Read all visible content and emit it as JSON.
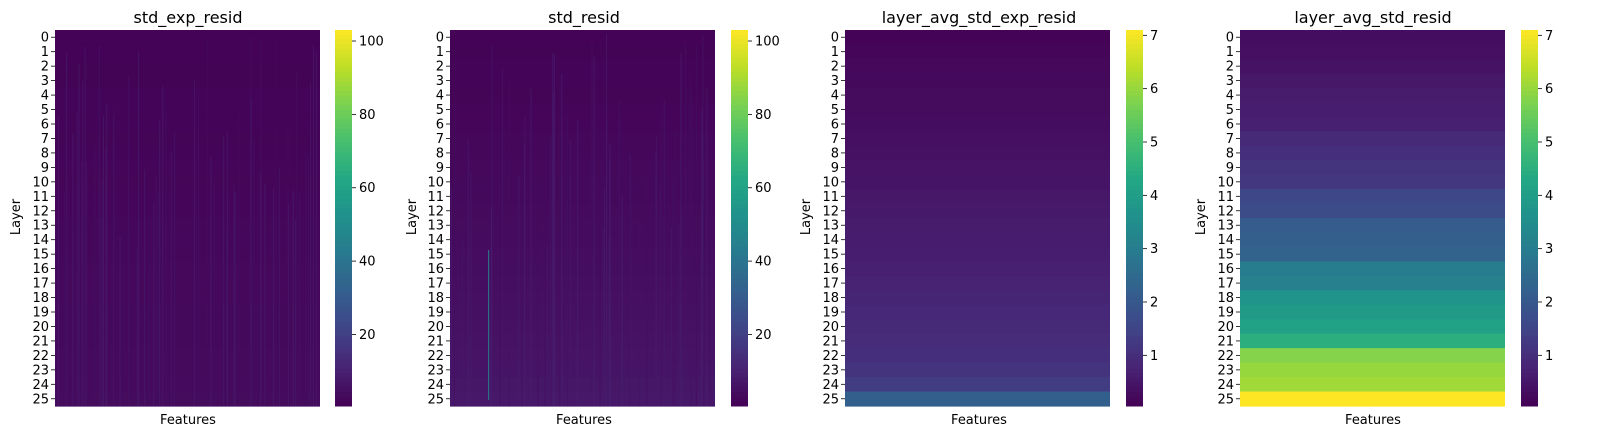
{
  "chart_data": [
    {
      "type": "heatmap",
      "title": "std_exp_resid",
      "xlabel": "Features",
      "ylabel": "Layer",
      "rows": [
        "0",
        "1",
        "2",
        "3",
        "4",
        "5",
        "6",
        "7",
        "8",
        "9",
        "10",
        "11",
        "12",
        "13",
        "14",
        "15",
        "16",
        "17",
        "18",
        "19",
        "20",
        "21",
        "22",
        "23",
        "24",
        "25"
      ],
      "colorbar": {
        "min": 0.5,
        "max": 103,
        "ticks": [
          20,
          40,
          60,
          80,
          100
        ]
      },
      "row_values": [
        1.2,
        1.2,
        1.3,
        1.3,
        1.4,
        1.4,
        1.5,
        1.6,
        1.7,
        1.8,
        1.9,
        2.0,
        2.1,
        2.2,
        2.3,
        2.4,
        2.5,
        2.6,
        2.7,
        2.8,
        2.9,
        3.0,
        3.1,
        3.2,
        3.3,
        3.5
      ],
      "colormap": "viridis"
    },
    {
      "type": "heatmap",
      "title": "std_resid",
      "xlabel": "Features",
      "ylabel": "Layer",
      "rows": [
        "0",
        "1",
        "2",
        "3",
        "4",
        "5",
        "6",
        "7",
        "8",
        "9",
        "10",
        "11",
        "12",
        "13",
        "14",
        "15",
        "16",
        "17",
        "18",
        "19",
        "20",
        "21",
        "22",
        "23",
        "24",
        "25"
      ],
      "colorbar": {
        "min": 0.5,
        "max": 103,
        "ticks": [
          20,
          40,
          60,
          80,
          100
        ]
      },
      "row_values": [
        1.2,
        1.3,
        1.4,
        1.5,
        1.6,
        1.8,
        2.0,
        2.2,
        2.4,
        2.6,
        2.8,
        3.0,
        3.2,
        3.4,
        3.6,
        3.9,
        4.2,
        4.5,
        4.8,
        5.1,
        5.4,
        5.7,
        6.0,
        6.3,
        6.7,
        7.1
      ],
      "colormap": "viridis"
    },
    {
      "type": "heatmap",
      "title": "layer_avg_std_exp_resid",
      "xlabel": "Features",
      "ylabel": "Layer",
      "rows": [
        "0",
        "1",
        "2",
        "3",
        "4",
        "5",
        "6",
        "7",
        "8",
        "9",
        "10",
        "11",
        "12",
        "13",
        "14",
        "15",
        "16",
        "17",
        "18",
        "19",
        "20",
        "21",
        "22",
        "23",
        "24",
        "25"
      ],
      "colorbar": {
        "min": 0.05,
        "max": 7.1,
        "ticks": [
          1,
          2,
          3,
          4,
          5,
          6,
          7
        ]
      },
      "row_values": [
        0.1,
        0.15,
        0.2,
        0.22,
        0.25,
        0.28,
        0.3,
        0.35,
        0.38,
        0.42,
        0.45,
        0.5,
        0.55,
        0.6,
        0.62,
        0.65,
        0.7,
        0.75,
        0.8,
        0.85,
        0.9,
        0.95,
        1.0,
        1.1,
        1.3,
        2.2
      ],
      "colormap": "viridis"
    },
    {
      "type": "heatmap",
      "title": "layer_avg_std_resid",
      "xlabel": "Features",
      "ylabel": "Layer",
      "rows": [
        "0",
        "1",
        "2",
        "3",
        "4",
        "5",
        "6",
        "7",
        "8",
        "9",
        "10",
        "11",
        "12",
        "13",
        "14",
        "15",
        "16",
        "17",
        "18",
        "19",
        "20",
        "21",
        "22",
        "23",
        "24",
        "25"
      ],
      "colorbar": {
        "min": 0.05,
        "max": 7.1,
        "ticks": [
          1,
          2,
          3,
          4,
          5,
          6,
          7
        ]
      },
      "row_values": [
        0.3,
        0.35,
        0.4,
        0.5,
        0.6,
        0.65,
        0.7,
        0.9,
        1.0,
        1.1,
        1.2,
        1.6,
        1.7,
        2.1,
        2.2,
        2.3,
        3.0,
        3.1,
        3.7,
        3.9,
        4.1,
        4.5,
        5.8,
        6.0,
        6.1,
        7.1
      ],
      "colormap": "viridis"
    }
  ]
}
